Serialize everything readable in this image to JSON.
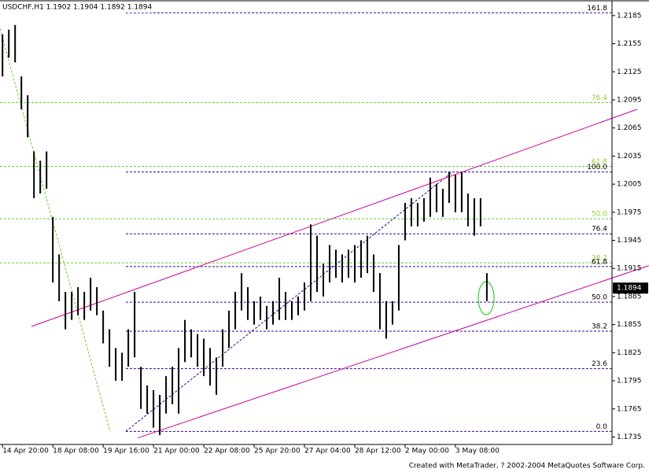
{
  "chart_data": {
    "type": "hl_bars",
    "title": "USDCHF,H1  1.1902 1.1904 1.1892 1.1894",
    "footer": "Created with MetaTrader, ? 2002-2004 MetaQuotes Software Corp.",
    "color": "#000000",
    "x": [
      0,
      1,
      2,
      3,
      4,
      5,
      6,
      7,
      8,
      9,
      10,
      11,
      12,
      13,
      14,
      15,
      16,
      17,
      18,
      19,
      20,
      21,
      22,
      23,
      24,
      25,
      26,
      27,
      28,
      29,
      30,
      31,
      32,
      33,
      34,
      35,
      36,
      37,
      38,
      39,
      40,
      41,
      42,
      43,
      44,
      45,
      46,
      47,
      48,
      49,
      50,
      51,
      52,
      53,
      54,
      55,
      56,
      57,
      58,
      59,
      60,
      61,
      62,
      63,
      64,
      65,
      66,
      67,
      68,
      69,
      70,
      71,
      72,
      73,
      74,
      75,
      76,
      77
    ],
    "high": [
      1.2165,
      1.217,
      1.2175,
      1.212,
      1.21,
      1.204,
      1.203,
      1.204,
      1.197,
      1.193,
      1.189,
      1.189,
      1.1895,
      1.189,
      1.1905,
      1.1895,
      1.187,
      1.185,
      1.183,
      1.1825,
      1.185,
      1.189,
      1.181,
      1.179,
      1.1785,
      1.178,
      1.18,
      1.181,
      1.183,
      1.186,
      1.185,
      1.1845,
      1.184,
      1.183,
      1.182,
      1.185,
      1.187,
      1.189,
      1.191,
      1.1895,
      1.188,
      1.1885,
      1.1875,
      1.188,
      1.1905,
      1.189,
      1.188,
      1.1885,
      1.19,
      1.1962,
      1.195,
      1.192,
      1.194,
      1.1935,
      1.193,
      1.1935,
      1.194,
      1.1945,
      1.195,
      1.193,
      1.191,
      1.188,
      1.188,
      1.194,
      1.1985,
      1.199,
      1.1985,
      1.199,
      1.2012,
      1.2005,
      1.2,
      1.2018,
      1.2015,
      1.2018,
      1.1995,
      1.199,
      1.199,
      1.191
    ],
    "low": [
      1.212,
      1.214,
      1.2135,
      1.2085,
      1.2055,
      1.199,
      1.1995,
      1.2,
      1.19,
      1.188,
      1.185,
      1.186,
      1.1865,
      1.186,
      1.187,
      1.1865,
      1.1835,
      1.181,
      1.1795,
      1.1795,
      1.181,
      1.182,
      1.1765,
      1.176,
      1.1745,
      1.1737,
      1.176,
      1.177,
      1.176,
      1.1815,
      1.182,
      1.181,
      1.18,
      1.179,
      1.178,
      1.181,
      1.183,
      1.185,
      1.187,
      1.186,
      1.1855,
      1.186,
      1.185,
      1.1855,
      1.186,
      1.186,
      1.186,
      1.1865,
      1.187,
      1.188,
      1.189,
      1.1885,
      1.19,
      1.1905,
      1.19,
      1.1905,
      1.19,
      1.1905,
      1.191,
      1.189,
      1.185,
      1.184,
      1.1855,
      1.187,
      1.1945,
      1.196,
      1.196,
      1.1965,
      1.197,
      1.1975,
      1.197,
      1.1985,
      1.1975,
      1.1975,
      1.196,
      1.195,
      1.196,
      1.188
    ],
    "xlim": [
      -0.4,
      96.9
    ],
    "xticks": [
      {
        "value": 0,
        "label": "14 Apr 20:00"
      },
      {
        "value": 8,
        "label": "18 Apr 08:00"
      },
      {
        "value": 16,
        "label": "19 Apr 16:00"
      },
      {
        "value": 24,
        "label": "21 Apr 00:00"
      },
      {
        "value": 32,
        "label": "22 Apr 08:00"
      },
      {
        "value": 40,
        "label": "25 Apr 20:00"
      },
      {
        "value": 48,
        "label": "27 Apr 04:00"
      },
      {
        "value": 56,
        "label": "28 Apr 12:00"
      },
      {
        "value": 64,
        "label": "2 May 00:00"
      },
      {
        "value": 72,
        "label": "3 May 08:00"
      }
    ],
    "ylim": [
      1.1727,
      1.22
    ],
    "yticks": [
      1.2185,
      1.2155,
      1.2125,
      1.2095,
      1.2065,
      1.2035,
      1.2005,
      1.1975,
      1.1945,
      1.1915,
      1.1885,
      1.1855,
      1.1825,
      1.1795,
      1.1765,
      1.1735
    ],
    "last_price": 1.1894,
    "fib_purple": {
      "color": "#330099",
      "start_x": 19.6,
      "levels": [
        {
          "price": 1.2188,
          "label": "161.8"
        },
        {
          "price": 1.2018,
          "label": "100.0"
        },
        {
          "price": 1.1952,
          "label": "76.4"
        },
        {
          "price": 1.1917,
          "label": "61.8"
        },
        {
          "price": 1.1879,
          "label": "50.0"
        },
        {
          "price": 1.1848,
          "label": "38.2"
        },
        {
          "price": 1.1808,
          "label": "23.6"
        },
        {
          "price": 1.1741,
          "label": "0.0"
        }
      ]
    },
    "fib_green": {
      "color": "#66cc33",
      "start_x": -0.4,
      "levels": [
        {
          "price": 1.2092,
          "label": "76.4"
        },
        {
          "price": 1.2024,
          "label": "61.8"
        },
        {
          "price": 1.1968,
          "label": "50.0"
        },
        {
          "price": 1.1921,
          "label": "38.2"
        }
      ]
    },
    "channels": {
      "color": "#cc0099",
      "lines": [
        {
          "x": [
            4.6,
            100.9
          ],
          "y": [
            1.1853,
            1.2085
          ]
        },
        {
          "x": [
            21.5,
            102.75
          ],
          "y": [
            1.1734,
            1.1918
          ]
        }
      ]
    },
    "fib_bases": [
      {
        "color": "#66cc33",
        "x": [
          -0.4,
          17.1
        ],
        "y": [
          1.2171,
          1.1741
        ]
      },
      {
        "color": "#330099",
        "x": [
          19.6,
          71.5
        ],
        "y": [
          1.1741,
          1.2018
        ]
      }
    ]
  }
}
